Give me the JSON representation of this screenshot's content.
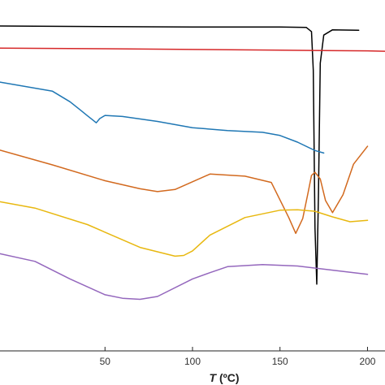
{
  "chart_data": {
    "type": "line",
    "xlabel_italic": "T",
    "xlabel_unit": " (ºC)",
    "xlim": [
      -10,
      210
    ],
    "ylim": [
      0,
      100
    ],
    "x_ticks": [
      "50",
      "100",
      "150",
      "200"
    ],
    "x_tick_values": [
      50,
      100,
      150,
      200
    ],
    "grid": false,
    "y_ticks_visible": false,
    "series": [
      {
        "color": "#000000",
        "x": [
          -10,
          50,
          100,
          150,
          165,
          168,
          169,
          170,
          171,
          172,
          173,
          175,
          180,
          195
        ],
        "y": [
          92.6,
          92.4,
          92.3,
          92.3,
          92.2,
          91,
          80,
          35,
          19,
          45,
          82,
          90,
          91.5,
          91.4
        ]
      },
      {
        "color": "#d62728",
        "x": [
          -10,
          50,
          100,
          150,
          200,
          210
        ],
        "y": [
          86.3,
          86.1,
          85.9,
          85.7,
          85.5,
          85.4
        ]
      },
      {
        "color": "#1f77b4",
        "x": [
          -10,
          20,
          30,
          36,
          40,
          43,
          45,
          47,
          50,
          60,
          80,
          100,
          120,
          140,
          150,
          160,
          170,
          175
        ],
        "y": [
          76.6,
          74,
          71,
          68.6,
          67,
          65.8,
          65,
          66.2,
          67.1,
          66.8,
          65.4,
          63.6,
          62.8,
          62.3,
          61.4,
          59.5,
          57.1,
          56.4
        ]
      },
      {
        "color": "#d2691e",
        "x": [
          -10,
          20,
          50,
          70,
          80,
          90,
          110,
          130,
          145,
          155,
          159,
          163,
          166,
          168,
          170,
          173,
          176,
          180,
          186,
          192,
          200
        ],
        "y": [
          57.2,
          53,
          48.5,
          46.2,
          45.4,
          46,
          50.4,
          49.8,
          48,
          38,
          33.5,
          37.7,
          45,
          50,
          50.9,
          49,
          42.9,
          39.4,
          44.5,
          53.2,
          58.3
        ]
      },
      {
        "color": "#e8b810",
        "x": [
          -10,
          10,
          40,
          70,
          90,
          95,
          100,
          110,
          130,
          150,
          160,
          170,
          180,
          190,
          200
        ],
        "y": [
          42.5,
          40.7,
          36,
          29.5,
          27,
          27.2,
          28.5,
          33,
          38,
          40.1,
          40.2,
          39.8,
          38.2,
          36.8,
          37.2
        ]
      },
      {
        "color": "#9467bd",
        "x": [
          -10,
          10,
          30,
          50,
          60,
          70,
          80,
          100,
          110,
          120,
          140,
          160,
          180,
          200
        ],
        "y": [
          27.7,
          25.5,
          20.5,
          16,
          15,
          14.7,
          15.5,
          20.5,
          22.3,
          24,
          24.6,
          24.2,
          23,
          21.8
        ]
      }
    ]
  }
}
